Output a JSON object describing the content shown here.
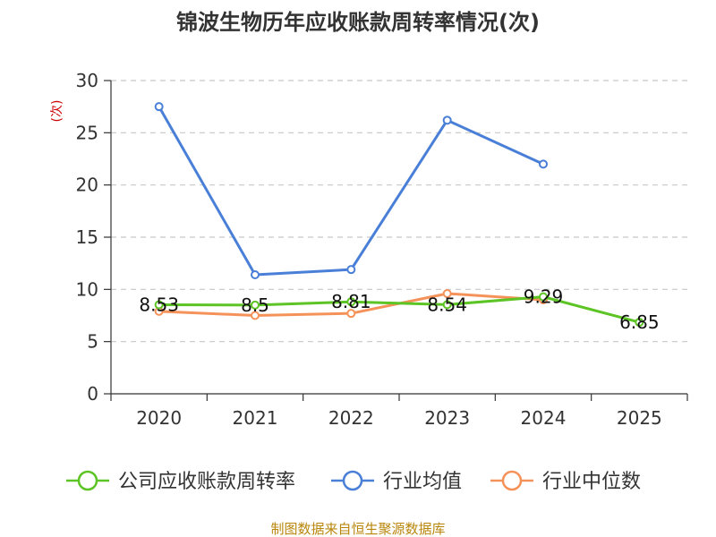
{
  "chart_data": {
    "type": "line",
    "title": "锦波生物历年应收账款周转率情况(次)",
    "ylabel": "(次)",
    "categories": [
      "2020",
      "2021",
      "2022",
      "2023",
      "2024",
      "2025"
    ],
    "ylim": [
      0,
      30
    ],
    "yticks": [
      "0",
      "5",
      "10",
      "15",
      "20",
      "25",
      "30"
    ],
    "grid": true,
    "legend_position": "bottom",
    "series": [
      {
        "name": "公司应收账款周转率",
        "color": "#5cc424",
        "values": [
          8.53,
          8.5,
          8.81,
          8.54,
          9.29,
          6.85
        ],
        "labels": [
          "8.53",
          "8.5",
          "8.81",
          "8.54",
          "9.29",
          "6.85"
        ]
      },
      {
        "name": "行业均值",
        "color": "#4a7fd8",
        "values": [
          27.5,
          11.4,
          11.9,
          26.2,
          22.0,
          null
        ]
      },
      {
        "name": "行业中位数",
        "color": "#f5925a",
        "values": [
          7.9,
          7.5,
          7.7,
          9.6,
          9.0,
          null
        ]
      }
    ],
    "source": "制图数据来自恒生聚源数据库"
  }
}
